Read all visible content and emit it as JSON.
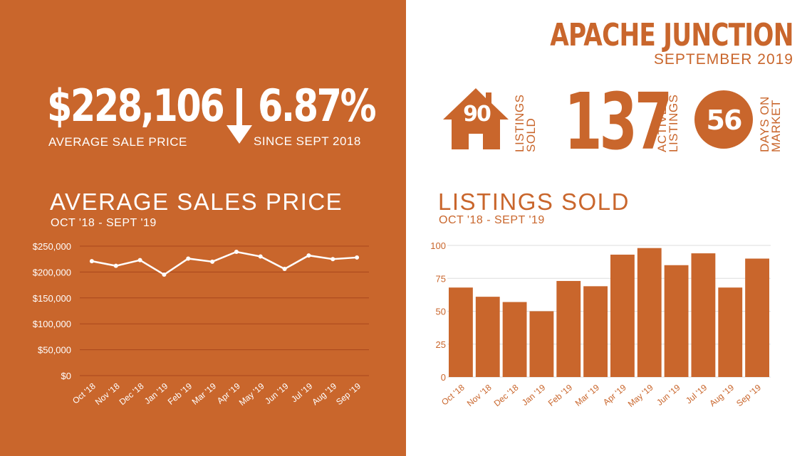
{
  "header": {
    "city": "APACHE JUNCTION",
    "month": "SEPTEMBER 2019"
  },
  "kpis": {
    "avg_price": {
      "value": "$228,106",
      "label": "AVERAGE  SALE PRICE"
    },
    "change": {
      "value": "6.87%",
      "label": "SINCE SEPT 2018",
      "direction": "down",
      "icon": "arrow-down-icon"
    },
    "listings_sold": {
      "value": "90",
      "label_line1": "LISTINGS",
      "label_line2": "SOLD",
      "icon": "house-icon"
    },
    "active_listings": {
      "value": "137",
      "label_line1": "ACTIVE",
      "label_line2": "LISTINGS"
    },
    "days_on_market": {
      "value": "56",
      "label_line1": "DAYS ON",
      "label_line2": "MARKET",
      "icon": "circle-badge"
    }
  },
  "colors": {
    "accent": "#c9662c",
    "white": "#ffffff",
    "grid_left": "#b04a24",
    "grid_right": "#dddddd"
  },
  "chart_data": [
    {
      "type": "line",
      "title": "AVERAGE SALES PRICE",
      "subtitle": "OCT '18 - SEPT '19",
      "categories": [
        "Oct '18",
        "Nov '18",
        "Dec '18",
        "Jan '19",
        "Feb '19",
        "Mar '19",
        "Apr '19",
        "May '19",
        "Jun '19",
        "Jul '19",
        "Aug '19",
        "Sep '19"
      ],
      "values": [
        221000,
        212000,
        223000,
        195000,
        226000,
        220000,
        239000,
        230000,
        206000,
        232000,
        225000,
        228106
      ],
      "ylim": [
        0,
        250000
      ],
      "yticks": [
        "$0",
        "$50,000",
        "$100,000",
        "$150,000",
        "$200,000",
        "$250,000"
      ],
      "grid": true
    },
    {
      "type": "bar",
      "title": "LISTINGS SOLD",
      "subtitle": "OCT '18 - SEPT '19",
      "categories": [
        "Oct '18",
        "Nov '18",
        "Dec '18",
        "Jan '19",
        "Feb '19",
        "Mar '19",
        "Apr '19",
        "May '19",
        "Jun '19",
        "Jul '19",
        "Aug '19",
        "Sep '19"
      ],
      "values": [
        68,
        61,
        57,
        50,
        73,
        69,
        93,
        98,
        85,
        94,
        68,
        90
      ],
      "ylim": [
        0,
        100
      ],
      "yticks": [
        "0",
        "25",
        "50",
        "75",
        "100"
      ],
      "grid": true
    }
  ]
}
